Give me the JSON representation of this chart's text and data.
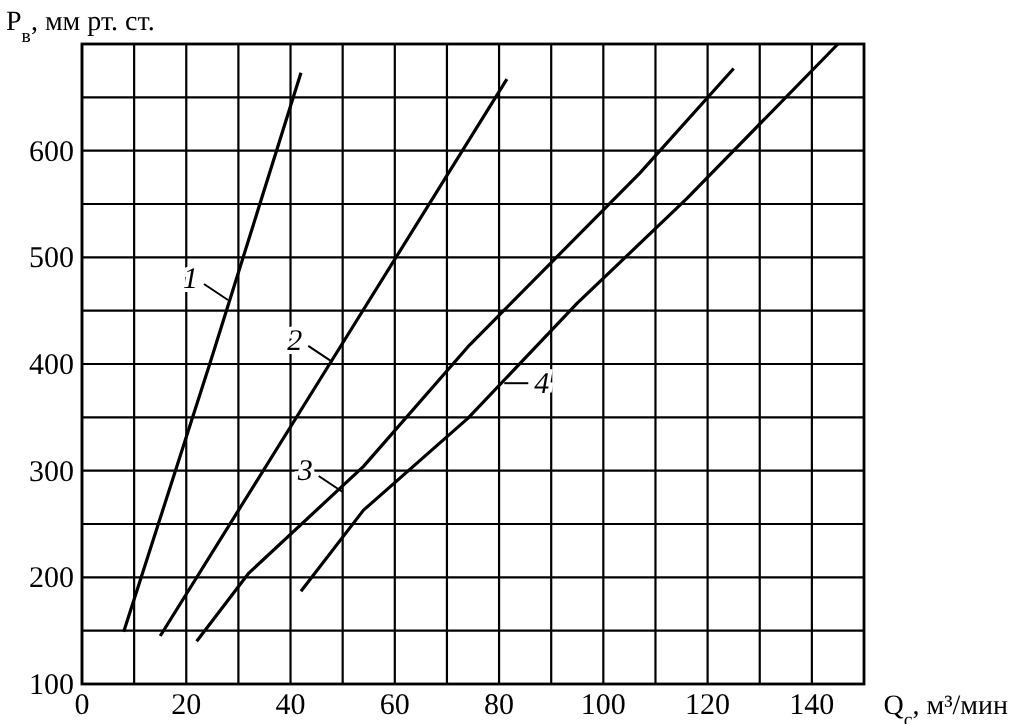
{
  "chart_data": {
    "type": "line",
    "xlabel": "Q$_{с}$, м³/мин",
    "ylabel": "P$_{в}$, мм рт. ст.",
    "xlim": [
      0,
      150
    ],
    "ylim": [
      100,
      700
    ],
    "xticks": [
      0,
      {
        "value": 10,
        "label": null
      },
      20,
      {
        "value": 30,
        "label": null
      },
      40,
      {
        "value": 50,
        "label": null
      },
      60,
      {
        "value": 70,
        "label": null
      },
      80,
      {
        "value": 90,
        "label": null
      },
      100,
      {
        "value": 110,
        "label": null
      },
      120,
      {
        "value": 130,
        "label": null
      },
      140
    ],
    "yticks": [
      100,
      {
        "value": 150,
        "label": null
      },
      200,
      {
        "value": 250,
        "label": null
      },
      300,
      {
        "value": 350,
        "label": null
      },
      400,
      {
        "value": 450,
        "label": null
      },
      500,
      {
        "value": 550,
        "label": null
      },
      600,
      {
        "value": 650,
        "label": null
      }
    ],
    "grid": true,
    "marker": "none",
    "line_style": "solid",
    "series": [
      {
        "color": "#000000",
        "x": [
          8,
          24.5,
          42
        ],
        "values": [
          149,
          400,
          673
        ]
      },
      {
        "color": "#000000",
        "x": [
          15,
          47.5,
          81.5
        ],
        "values": [
          145,
          400,
          667
        ]
      },
      {
        "color": "#000000",
        "x": [
          22,
          32,
          54,
          74,
          107,
          125
        ],
        "values": [
          140,
          204,
          304,
          416,
          579,
          677
        ]
      },
      {
        "color": "#000000",
        "x": [
          42,
          54,
          74,
          95,
          116,
          145
        ],
        "values": [
          187,
          263,
          349,
          457,
          555,
          700
        ]
      }
    ],
    "annotations": [
      {
        "text": "1",
        "x": 28,
        "y": 460
      },
      {
        "text": "2",
        "x": 48,
        "y": 402
      },
      {
        "text": "3",
        "x": 50,
        "y": 280
      },
      {
        "text": "4",
        "x": 81,
        "y": 382
      }
    ]
  }
}
